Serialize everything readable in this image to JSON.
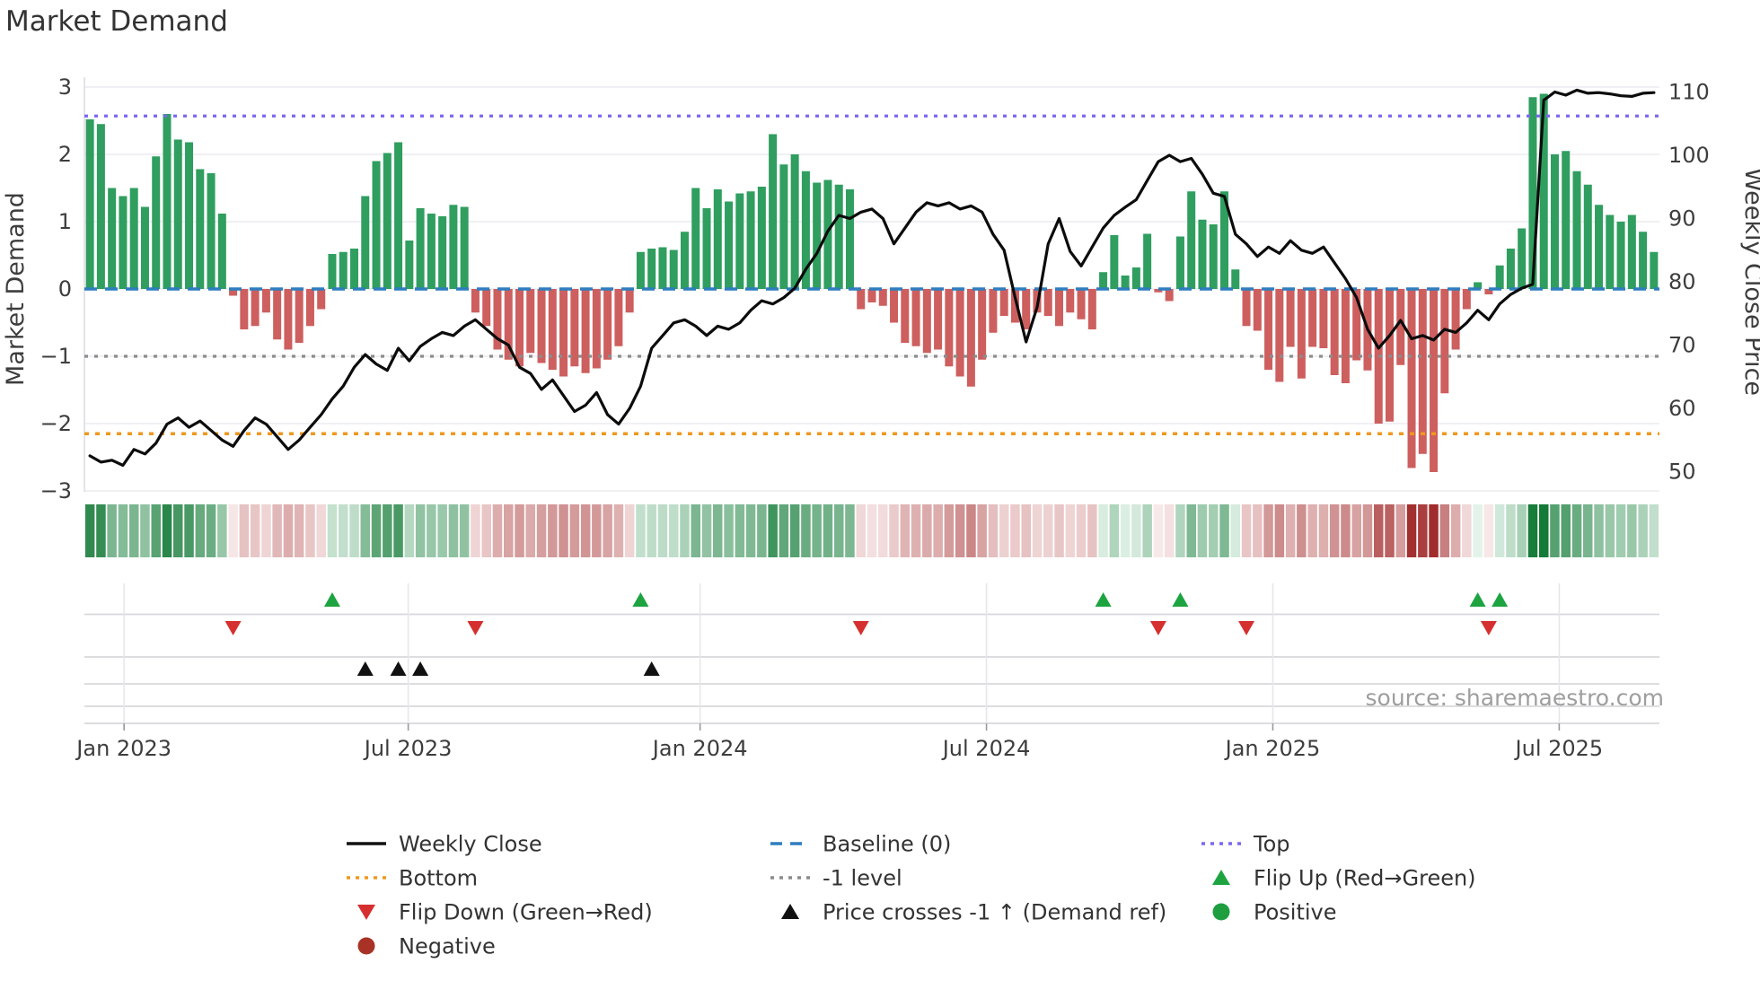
{
  "title": "Market Demand",
  "source": "source: sharemaestro.com",
  "axes": {
    "left": {
      "label": "Market Demand",
      "tick_values": [
        3,
        2,
        1,
        0,
        -1,
        -2,
        -3
      ],
      "tick_labels": [
        "3",
        "2",
        "1",
        "0",
        "−1",
        "−2",
        "−3"
      ],
      "ylim": [
        -3,
        3
      ]
    },
    "right": {
      "label": "Weekly Close Price",
      "tick_values": [
        110,
        100,
        90,
        80,
        70,
        60,
        50
      ],
      "tick_labels": [
        "110",
        "100",
        "90",
        "80",
        "70",
        "60",
        "50"
      ]
    }
  },
  "colors": {
    "green_bar": "#2f9e5f",
    "red_bar": "#cd5f5f",
    "baseline": "#2e7ebf",
    "top": "#7b68ee",
    "minus_one": "#8c8c8c",
    "bottom": "#f0981e",
    "price_line": "#0c0c0c",
    "flip_up": "#1da440",
    "flip_down": "#d62f2f",
    "price_cross": "#111111",
    "positive": "#1e9e3e",
    "negative": "#a93226",
    "grid": "#ebebf0",
    "band_line": "#d8d8dc"
  },
  "legend": {
    "columns": [
      [
        {
          "label": "Weekly Close",
          "swatch": "line",
          "color": "#111111"
        },
        {
          "label": "Bottom",
          "swatch": "dots",
          "color": "#f0981e"
        },
        {
          "label": "Flip Down (Green→Red)",
          "swatch": "tri-down",
          "color": "#d62f2f"
        },
        {
          "label": "Negative",
          "swatch": "circle",
          "color": "#a93226"
        }
      ],
      [
        {
          "label": "Baseline (0)",
          "swatch": "dashes",
          "color": "#2e7ebf"
        },
        {
          "label": "-1 level",
          "swatch": "dots",
          "color": "#8c8c8c"
        },
        {
          "label": "Price crosses -1 ↑ (Demand ref)",
          "swatch": "tri-up",
          "color": "#111111"
        }
      ],
      [
        {
          "label": "Top",
          "swatch": "dots",
          "color": "#7b68ee"
        },
        {
          "label": "Flip Up (Red→Green)",
          "swatch": "tri-up",
          "color": "#1da440"
        },
        {
          "label": "Positive",
          "swatch": "circle",
          "color": "#1e9e3e"
        }
      ]
    ]
  },
  "chart_data": {
    "type": "bar+line",
    "weeks": 143,
    "x_ticks": [
      {
        "label": "Jan 2023",
        "week": 3.1
      },
      {
        "label": "Jul 2023",
        "week": 28.9
      },
      {
        "label": "Jan 2024",
        "week": 55.4
      },
      {
        "label": "Jul 2024",
        "week": 81.4
      },
      {
        "label": "Jan 2025",
        "week": 107.4
      },
      {
        "label": "Jul 2025",
        "week": 133.4
      }
    ],
    "reference_lines": {
      "top": 2.57,
      "baseline": 0,
      "minus_one": -1,
      "bottom": -2.15
    },
    "series": [
      {
        "name": "Market Demand",
        "type": "bar",
        "axis": "left",
        "values": [
          2.52,
          2.45,
          1.5,
          1.38,
          1.5,
          1.22,
          1.97,
          2.6,
          2.22,
          2.18,
          1.78,
          1.72,
          1.12,
          -0.1,
          -0.6,
          -0.55,
          -0.35,
          -0.75,
          -0.9,
          -0.8,
          -0.55,
          -0.3,
          0.52,
          0.55,
          0.6,
          1.38,
          1.9,
          2.02,
          2.18,
          0.72,
          1.2,
          1.12,
          1.08,
          1.25,
          1.22,
          -0.35,
          -0.55,
          -0.9,
          -1.05,
          -1.15,
          -0.95,
          -1.1,
          -1.2,
          -1.3,
          -1.15,
          -1.25,
          -1.18,
          -1.05,
          -0.85,
          -0.35,
          0.55,
          0.6,
          0.62,
          0.58,
          0.85,
          1.5,
          1.2,
          1.48,
          1.3,
          1.42,
          1.45,
          1.52,
          2.3,
          1.85,
          2.0,
          1.75,
          1.58,
          1.62,
          1.55,
          1.48,
          -0.3,
          -0.2,
          -0.25,
          -0.5,
          -0.8,
          -0.85,
          -0.95,
          -0.9,
          -1.15,
          -1.3,
          -1.45,
          -1.05,
          -0.65,
          -0.4,
          -0.5,
          -0.6,
          -0.35,
          -0.4,
          -0.55,
          -0.35,
          -0.45,
          -0.6,
          0.25,
          0.8,
          0.2,
          0.32,
          0.82,
          -0.05,
          -0.18,
          0.78,
          1.45,
          1.03,
          0.96,
          1.45,
          0.29,
          -0.55,
          -0.62,
          -1.2,
          -1.38,
          -0.86,
          -1.33,
          -0.86,
          -0.88,
          -1.28,
          -1.4,
          -1.06,
          -1.21,
          -2.0,
          -1.97,
          -1.13,
          -2.66,
          -2.45,
          -2.72,
          -1.55,
          -0.9,
          -0.3,
          0.1,
          -0.08,
          0.35,
          0.6,
          0.9,
          2.85,
          2.9,
          2.0,
          2.05,
          1.75,
          1.55,
          1.25,
          1.1,
          1.0,
          1.1,
          0.85,
          0.55
        ]
      },
      {
        "name": "Weekly Close",
        "type": "line",
        "axis": "right",
        "values": [
          52.5,
          51.5,
          51.8,
          51.0,
          53.5,
          52.8,
          54.5,
          57.5,
          58.5,
          57.0,
          58.0,
          56.5,
          55.0,
          54.0,
          56.5,
          58.5,
          57.5,
          55.5,
          53.5,
          55.0,
          57.0,
          59.0,
          61.5,
          63.5,
          66.5,
          68.5,
          67.0,
          66.0,
          69.5,
          67.5,
          69.8,
          71.0,
          72.0,
          71.5,
          73.0,
          74.0,
          72.5,
          71.0,
          70.0,
          66.5,
          65.5,
          63.0,
          64.5,
          62.0,
          59.5,
          60.5,
          62.5,
          59.0,
          57.5,
          60.0,
          63.5,
          69.5,
          71.5,
          73.5,
          74.0,
          73.0,
          71.5,
          73.0,
          72.5,
          73.5,
          75.5,
          77.0,
          76.5,
          77.5,
          79.0,
          82.0,
          84.5,
          88.0,
          90.5,
          90.0,
          91.0,
          91.5,
          90.0,
          86.0,
          88.5,
          91.0,
          92.5,
          92.0,
          92.5,
          91.5,
          92.0,
          91.0,
          87.5,
          85.0,
          77.5,
          70.5,
          76.0,
          86.0,
          90.0,
          84.8,
          82.5,
          85.5,
          88.5,
          90.5,
          91.8,
          93.0,
          96.0,
          99.0,
          100.0,
          99.0,
          99.5,
          97.0,
          94.0,
          93.5,
          87.5,
          86.0,
          84.0,
          85.5,
          84.5,
          86.5,
          85.0,
          84.5,
          85.5,
          83.0,
          80.5,
          77.5,
          72.5,
          69.5,
          71.5,
          73.9,
          71.0,
          71.5,
          70.8,
          72.5,
          72.0,
          73.5,
          75.5,
          74.0,
          76.5,
          78.0,
          79.0,
          79.6,
          108.7,
          110.0,
          109.5,
          110.3,
          109.8,
          109.9,
          109.7,
          109.4,
          109.3,
          109.8,
          109.9
        ]
      }
    ],
    "markers": {
      "flip_up_weeks": [
        22,
        50,
        92,
        99,
        126,
        128
      ],
      "flip_down_weeks": [
        13,
        35,
        70,
        97,
        105,
        127
      ],
      "price_cross_weeks": [
        25,
        28,
        30,
        51
      ]
    },
    "heatmap": {
      "source": "demand values",
      "positive_max": 2.9,
      "negative_max": 2.75
    }
  }
}
